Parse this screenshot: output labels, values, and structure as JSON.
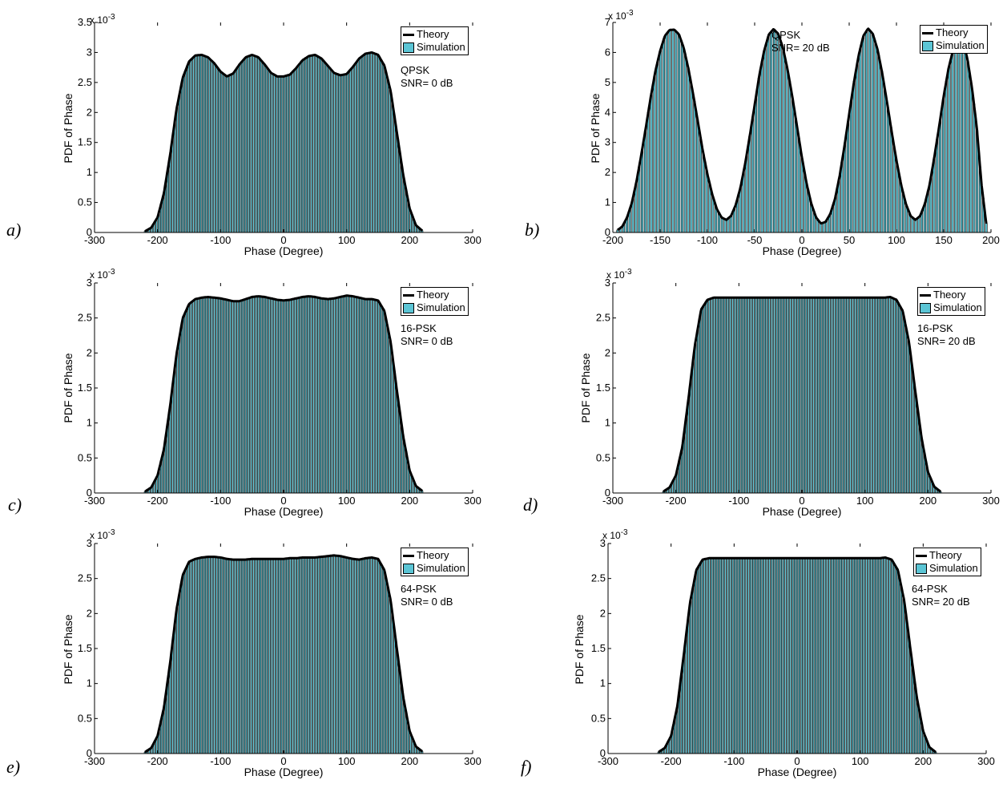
{
  "colors": {
    "bar_fill": "#5bc5d5",
    "bar_edge": "#000000",
    "theory_line": "#000000"
  },
  "chart_data": [
    {
      "panel": "a)",
      "type": "bar",
      "modulation": "QPSK",
      "snr": "SNR= 0 dB",
      "xlabel": "Phase (Degree)",
      "ylabel": "PDF of Phase",
      "exponent_label": "x 10",
      "exponent_sup": "-3",
      "xlim": [
        -300,
        300
      ],
      "xticks": [
        -300,
        -200,
        -100,
        0,
        100,
        200,
        300
      ],
      "xtick_labels": [
        "-300",
        "-200",
        "-100",
        "0",
        "100",
        "200",
        "300"
      ],
      "ylim": [
        0,
        3.5
      ],
      "yticks": [
        0,
        0.5,
        1,
        1.5,
        2,
        2.5,
        3,
        3.5
      ],
      "ytick_labels": [
        "0",
        "0.5",
        "1",
        "1.5",
        "2",
        "2.5",
        "3",
        "3.5"
      ],
      "series": [
        {
          "name": "Theory",
          "x": [
            -220,
            -210,
            -200,
            -190,
            -180,
            -170,
            -160,
            -150,
            -140,
            -130,
            -120,
            -110,
            -100,
            -90,
            -80,
            -70,
            -60,
            -50,
            -40,
            -30,
            -20,
            -10,
            0,
            10,
            20,
            30,
            40,
            50,
            60,
            70,
            80,
            90,
            100,
            110,
            120,
            130,
            140,
            150,
            160,
            170,
            180,
            190,
            200,
            210,
            220
          ],
          "y": [
            0.02,
            0.08,
            0.25,
            0.65,
            1.3,
            2.05,
            2.58,
            2.85,
            2.95,
            2.96,
            2.92,
            2.82,
            2.68,
            2.6,
            2.65,
            2.8,
            2.92,
            2.96,
            2.92,
            2.8,
            2.66,
            2.6,
            2.6,
            2.63,
            2.74,
            2.87,
            2.94,
            2.96,
            2.9,
            2.78,
            2.66,
            2.62,
            2.64,
            2.76,
            2.9,
            2.98,
            3.0,
            2.96,
            2.78,
            2.35,
            1.65,
            0.95,
            0.4,
            0.12,
            0.03
          ]
        },
        {
          "name": "Simulation"
        }
      ],
      "legend_location": "top-right"
    },
    {
      "panel": "b)",
      "type": "bar",
      "modulation": "QPSK",
      "snr": "SNR= 20 dB",
      "xlabel": "Phase (Degree)",
      "ylabel": "PDF of Phase",
      "exponent_label": "x 10",
      "exponent_sup": "-3",
      "xlim": [
        -200,
        200
      ],
      "xticks": [
        -200,
        -150,
        -100,
        -50,
        0,
        50,
        100,
        150,
        200
      ],
      "xtick_labels": [
        "-200",
        "-150",
        "-100",
        "-50",
        "0",
        "50",
        "100",
        "150",
        "200"
      ],
      "ylim": [
        0,
        7
      ],
      "yticks": [
        0,
        1,
        2,
        3,
        4,
        5,
        6,
        7
      ],
      "ytick_labels": [
        "0",
        "1",
        "2",
        "3",
        "4",
        "5",
        "6",
        "7"
      ],
      "series": [
        {
          "name": "Theory",
          "x": [
            -195,
            -190,
            -185,
            -180,
            -175,
            -170,
            -165,
            -160,
            -155,
            -150,
            -145,
            -140,
            -135,
            -130,
            -125,
            -120,
            -115,
            -110,
            -105,
            -100,
            -95,
            -90,
            -85,
            -80,
            -75,
            -70,
            -65,
            -60,
            -55,
            -50,
            -45,
            -40,
            -35,
            -30,
            -25,
            -20,
            -15,
            -10,
            -5,
            0,
            5,
            10,
            15,
            20,
            25,
            30,
            35,
            40,
            45,
            50,
            55,
            60,
            65,
            70,
            75,
            80,
            85,
            90,
            95,
            100,
            105,
            110,
            115,
            120,
            125,
            130,
            135,
            140,
            145,
            150,
            155,
            160,
            165,
            170,
            175,
            180,
            185,
            190,
            195
          ],
          "y": [
            0.08,
            0.2,
            0.5,
            0.98,
            1.7,
            2.58,
            3.52,
            4.5,
            5.38,
            6.05,
            6.55,
            6.75,
            6.76,
            6.6,
            6.15,
            5.45,
            4.6,
            3.68,
            2.75,
            1.95,
            1.28,
            0.78,
            0.5,
            0.42,
            0.55,
            0.92,
            1.5,
            2.3,
            3.25,
            4.25,
            5.25,
            6.05,
            6.6,
            6.78,
            6.62,
            6.15,
            5.4,
            4.5,
            3.5,
            2.5,
            1.62,
            0.95,
            0.5,
            0.3,
            0.35,
            0.62,
            1.12,
            1.9,
            2.88,
            3.95,
            5.0,
            5.9,
            6.55,
            6.8,
            6.62,
            6.1,
            5.3,
            4.35,
            3.35,
            2.4,
            1.58,
            0.95,
            0.55,
            0.42,
            0.55,
            0.95,
            1.58,
            2.5,
            3.5,
            4.55,
            5.45,
            6.1,
            6.5,
            6.4,
            5.8,
            4.8,
            3.5,
            1.6,
            0.3
          ]
        },
        {
          "name": "Simulation"
        }
      ],
      "legend_location": "top-right"
    },
    {
      "panel": "c)",
      "type": "bar",
      "modulation": "16-PSK",
      "snr": "SNR= 0 dB",
      "xlabel": "Phase (Degree)",
      "ylabel": "PDF of Phase",
      "exponent_label": "x 10",
      "exponent_sup": "-3",
      "xlim": [
        -300,
        300
      ],
      "xticks": [
        -300,
        -200,
        -100,
        0,
        100,
        200,
        300
      ],
      "xtick_labels": [
        "-300",
        "-200",
        "-100",
        "0",
        "100",
        "200",
        "300"
      ],
      "ylim": [
        0,
        3
      ],
      "yticks": [
        0,
        0.5,
        1,
        1.5,
        2,
        2.5,
        3
      ],
      "ytick_labels": [
        "0",
        "0.5",
        "1",
        "1.5",
        "2",
        "2.5",
        "3"
      ],
      "series": [
        {
          "name": "Theory",
          "x": [
            -220,
            -210,
            -200,
            -190,
            -180,
            -170,
            -160,
            -150,
            -140,
            -130,
            -120,
            -110,
            -100,
            -90,
            -80,
            -70,
            -60,
            -50,
            -40,
            -30,
            -20,
            -10,
            0,
            10,
            20,
            30,
            40,
            50,
            60,
            70,
            80,
            90,
            100,
            110,
            120,
            130,
            140,
            150,
            160,
            170,
            180,
            190,
            200,
            210,
            220
          ],
          "y": [
            0.02,
            0.08,
            0.25,
            0.62,
            1.25,
            1.98,
            2.5,
            2.7,
            2.77,
            2.79,
            2.8,
            2.79,
            2.78,
            2.76,
            2.74,
            2.74,
            2.77,
            2.8,
            2.81,
            2.8,
            2.78,
            2.76,
            2.75,
            2.76,
            2.78,
            2.8,
            2.81,
            2.8,
            2.78,
            2.77,
            2.78,
            2.8,
            2.82,
            2.81,
            2.79,
            2.77,
            2.77,
            2.75,
            2.6,
            2.15,
            1.45,
            0.8,
            0.32,
            0.1,
            0.03
          ]
        },
        {
          "name": "Simulation"
        }
      ],
      "legend_location": "top-right"
    },
    {
      "panel": "d)",
      "type": "bar",
      "modulation": "16-PSK",
      "snr": "SNR= 20 dB",
      "xlabel": "Phase (Degree)",
      "ylabel": "PDF of Phase",
      "exponent_label": "x 10",
      "exponent_sup": "-3",
      "xlim": [
        -300,
        300
      ],
      "xticks": [
        -300,
        -200,
        -100,
        0,
        100,
        200,
        300
      ],
      "xtick_labels": [
        "-300",
        "-200",
        "-100",
        "0",
        "100",
        "200",
        "300"
      ],
      "ylim": [
        0,
        3
      ],
      "yticks": [
        0,
        0.5,
        1,
        1.5,
        2,
        2.5,
        3
      ],
      "ytick_labels": [
        "0",
        "0.5",
        "1",
        "1.5",
        "2",
        "2.5",
        "3"
      ],
      "series": [
        {
          "name": "Theory",
          "x": [
            -220,
            -210,
            -200,
            -190,
            -180,
            -170,
            -160,
            -150,
            -140,
            -130,
            -120,
            -110,
            -100,
            -90,
            -80,
            -70,
            -60,
            -50,
            -40,
            -30,
            -20,
            -10,
            0,
            10,
            20,
            30,
            40,
            50,
            60,
            70,
            80,
            90,
            100,
            110,
            120,
            130,
            140,
            150,
            160,
            170,
            180,
            190,
            200,
            210,
            220
          ],
          "y": [
            0.02,
            0.08,
            0.25,
            0.65,
            1.35,
            2.1,
            2.62,
            2.76,
            2.79,
            2.79,
            2.79,
            2.79,
            2.79,
            2.79,
            2.79,
            2.79,
            2.79,
            2.79,
            2.79,
            2.79,
            2.79,
            2.79,
            2.79,
            2.79,
            2.79,
            2.79,
            2.79,
            2.79,
            2.79,
            2.79,
            2.79,
            2.79,
            2.79,
            2.79,
            2.79,
            2.79,
            2.8,
            2.76,
            2.6,
            2.15,
            1.45,
            0.78,
            0.3,
            0.09,
            0.02
          ]
        },
        {
          "name": "Simulation"
        }
      ],
      "legend_location": "top-right"
    },
    {
      "panel": "e)",
      "type": "bar",
      "modulation": "64-PSK",
      "snr": "SNR= 0 dB",
      "xlabel": "Phase (Degree)",
      "ylabel": "PDF of Phase",
      "exponent_label": "x 10",
      "exponent_sup": "-3",
      "xlim": [
        -300,
        300
      ],
      "xticks": [
        -300,
        -200,
        -100,
        0,
        100,
        200,
        300
      ],
      "xtick_labels": [
        "-300",
        "-200",
        "-100",
        "0",
        "100",
        "200",
        "300"
      ],
      "ylim": [
        0,
        3
      ],
      "yticks": [
        0,
        0.5,
        1,
        1.5,
        2,
        2.5,
        3
      ],
      "ytick_labels": [
        "0",
        "0.5",
        "1",
        "1.5",
        "2",
        "2.5",
        "3"
      ],
      "series": [
        {
          "name": "Theory",
          "x": [
            -220,
            -210,
            -200,
            -190,
            -180,
            -170,
            -160,
            -150,
            -140,
            -130,
            -120,
            -110,
            -100,
            -90,
            -80,
            -70,
            -60,
            -50,
            -40,
            -30,
            -20,
            -10,
            0,
            10,
            20,
            30,
            40,
            50,
            60,
            70,
            80,
            90,
            100,
            110,
            120,
            130,
            140,
            150,
            160,
            170,
            180,
            190,
            200,
            210,
            220
          ],
          "y": [
            0.02,
            0.08,
            0.25,
            0.65,
            1.3,
            2.05,
            2.55,
            2.74,
            2.78,
            2.8,
            2.81,
            2.81,
            2.8,
            2.78,
            2.77,
            2.77,
            2.77,
            2.78,
            2.78,
            2.78,
            2.78,
            2.78,
            2.78,
            2.79,
            2.79,
            2.8,
            2.8,
            2.8,
            2.81,
            2.82,
            2.83,
            2.82,
            2.8,
            2.78,
            2.77,
            2.79,
            2.8,
            2.78,
            2.62,
            2.18,
            1.48,
            0.8,
            0.32,
            0.1,
            0.03
          ]
        },
        {
          "name": "Simulation"
        }
      ],
      "legend_location": "top-right"
    },
    {
      "panel": "f)",
      "type": "bar",
      "modulation": "64-PSK",
      "snr": "SNR= 20 dB",
      "xlabel": "Phase (Degree)",
      "ylabel": "PDF of Phase",
      "exponent_label": "x 10",
      "exponent_sup": "-3",
      "xlim": [
        -300,
        300
      ],
      "xticks": [
        -300,
        -200,
        -100,
        0,
        100,
        200,
        300
      ],
      "xtick_labels": [
        "-300",
        "-200",
        "-100",
        "0",
        "100",
        "200",
        "300"
      ],
      "ylim": [
        0,
        3
      ],
      "yticks": [
        0,
        0.5,
        1,
        1.5,
        2,
        2.5,
        3
      ],
      "ytick_labels": [
        "0",
        "0.5",
        "1",
        "1.5",
        "2",
        "2.5",
        "3"
      ],
      "series": [
        {
          "name": "Theory",
          "x": [
            -220,
            -210,
            -200,
            -190,
            -180,
            -170,
            -160,
            -150,
            -140,
            -130,
            -120,
            -110,
            -100,
            -90,
            -80,
            -70,
            -60,
            -50,
            -40,
            -30,
            -20,
            -10,
            0,
            10,
            20,
            30,
            40,
            50,
            60,
            70,
            80,
            90,
            100,
            110,
            120,
            130,
            140,
            150,
            160,
            170,
            180,
            190,
            200,
            210,
            220
          ],
          "y": [
            0.02,
            0.08,
            0.25,
            0.68,
            1.4,
            2.15,
            2.62,
            2.77,
            2.79,
            2.79,
            2.79,
            2.79,
            2.79,
            2.79,
            2.79,
            2.79,
            2.79,
            2.79,
            2.79,
            2.79,
            2.79,
            2.79,
            2.79,
            2.79,
            2.79,
            2.79,
            2.79,
            2.79,
            2.79,
            2.79,
            2.79,
            2.79,
            2.79,
            2.79,
            2.79,
            2.79,
            2.8,
            2.77,
            2.62,
            2.18,
            1.48,
            0.8,
            0.32,
            0.09,
            0.02
          ]
        },
        {
          "name": "Simulation"
        }
      ],
      "legend_location": "top-right"
    }
  ]
}
